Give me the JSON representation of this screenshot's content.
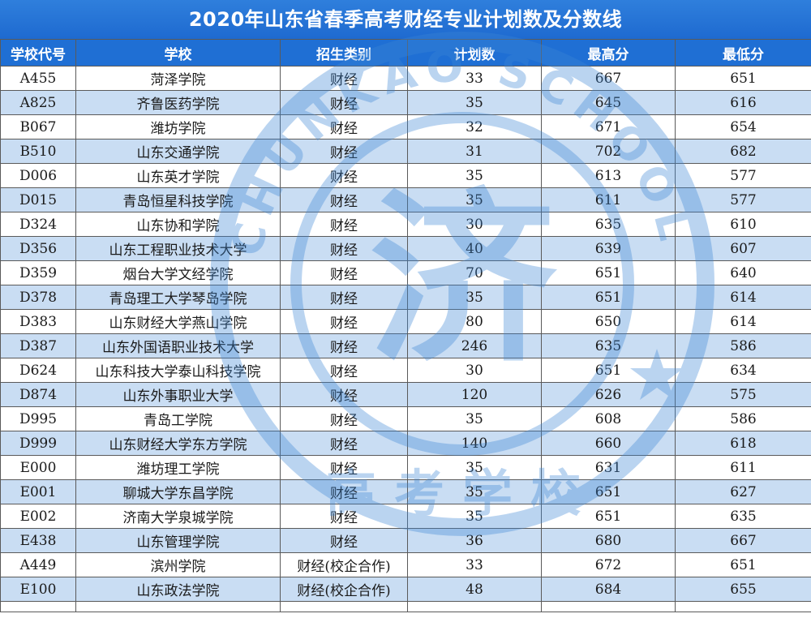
{
  "title": "2020年山东省春季高考财经专业计划数及分数线",
  "columns": [
    "学校代号",
    "学校",
    "招生类别",
    "计划数",
    "最高分",
    "最低分"
  ],
  "rows": [
    [
      "A455",
      "菏泽学院",
      "财经",
      "33",
      "667",
      "651"
    ],
    [
      "A825",
      "齐鲁医药学院",
      "财经",
      "35",
      "645",
      "616"
    ],
    [
      "B067",
      "潍坊学院",
      "财经",
      "32",
      "671",
      "654"
    ],
    [
      "B510",
      "山东交通学院",
      "财经",
      "31",
      "702",
      "682"
    ],
    [
      "D006",
      "山东英才学院",
      "财经",
      "35",
      "613",
      "577"
    ],
    [
      "D015",
      "青岛恒星科技学院",
      "财经",
      "35",
      "611",
      "577"
    ],
    [
      "D324",
      "山东协和学院",
      "财经",
      "30",
      "635",
      "610"
    ],
    [
      "D356",
      "山东工程职业技术大学",
      "财经",
      "40",
      "639",
      "607"
    ],
    [
      "D359",
      "烟台大学文经学院",
      "财经",
      "70",
      "651",
      "640"
    ],
    [
      "D378",
      "青岛理工大学琴岛学院",
      "财经",
      "35",
      "651",
      "614"
    ],
    [
      "D383",
      "山东财经大学燕山学院",
      "财经",
      "80",
      "650",
      "614"
    ],
    [
      "D387",
      "山东外国语职业技术大学",
      "财经",
      "246",
      "635",
      "586"
    ],
    [
      "D624",
      "山东科技大学泰山科技学院",
      "财经",
      "30",
      "651",
      "634"
    ],
    [
      "D874",
      "山东外事职业大学",
      "财经",
      "120",
      "626",
      "575"
    ],
    [
      "D995",
      "青岛工学院",
      "财经",
      "35",
      "608",
      "586"
    ],
    [
      "D999",
      "山东财经大学东方学院",
      "财经",
      "140",
      "660",
      "618"
    ],
    [
      "E000",
      "潍坊理工学院",
      "财经",
      "35",
      "631",
      "611"
    ],
    [
      "E001",
      "聊城大学东昌学院",
      "财经",
      "35",
      "651",
      "627"
    ],
    [
      "E002",
      "济南大学泉城学院",
      "财经",
      "35",
      "651",
      "635"
    ],
    [
      "E438",
      "山东管理学院",
      "财经",
      "36",
      "680",
      "667"
    ],
    [
      "A449",
      "滨州学院",
      "财经(校企合作)",
      "33",
      "672",
      "651"
    ],
    [
      "E100",
      "山东政法学院",
      "财经(校企合作)",
      "48",
      "684",
      "655"
    ]
  ],
  "watermark": {
    "ring_text": "CHUNKAO SCHOOL",
    "bottom_text": "高考学校",
    "center_glyph": "济"
  }
}
